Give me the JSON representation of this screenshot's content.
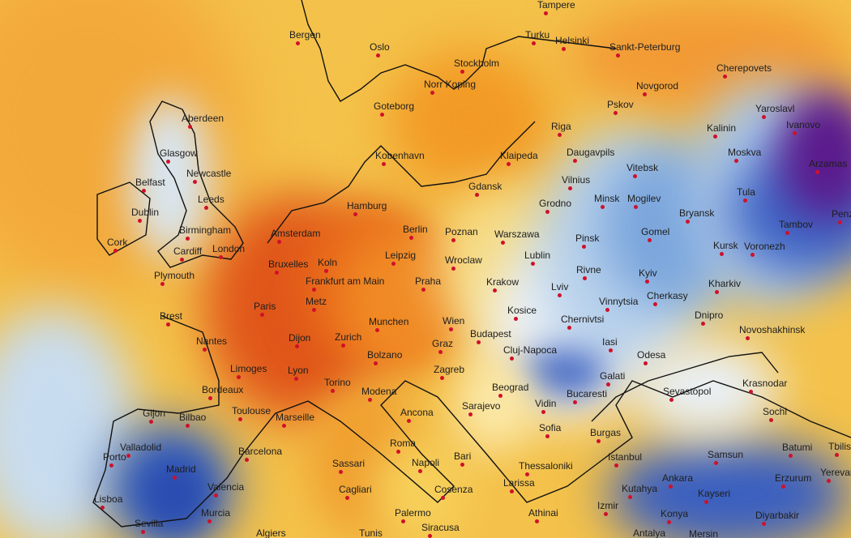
{
  "map": {
    "type": "weather-anomaly-map",
    "palette": {
      "warm_strong": "#e0561a",
      "warm": "#f29a25",
      "neutral_warm": "#f6cf5a",
      "neutral_cool": "#eaf1f7",
      "cool": "#8fb5e0",
      "cold": "#2f56b8",
      "very_cold": "#5b1a8c",
      "city_dot": "#d0102a"
    },
    "cities": [
      "Tampere",
      "Bergen",
      "Turku",
      "Helsinki",
      "Sankt-Peterburg",
      "Oslo",
      "Stockholm",
      "Cherepovets",
      "Norr Koping",
      "Novgorod",
      "Goteborg",
      "Pskov",
      "Yaroslavl",
      "Aberdeen",
      "Riga",
      "Ivanovo",
      "Kalinin",
      "Glasgow",
      "Kobenhavn",
      "Klaipeda",
      "Daugavpils",
      "Moskva",
      "Newcastle",
      "Vitebsk",
      "Arzamas",
      "Belfast",
      "Vilnius",
      "Gdansk",
      "Leeds",
      "Minsk",
      "Mogilev",
      "Tula",
      "Dublin",
      "Hamburg",
      "Grodno",
      "Bryansk",
      "Penza",
      "Berlin",
      "Poznan",
      "Warszawa",
      "Amsterdam",
      "Birmingham",
      "Tambov",
      "Pinsk",
      "Gomel",
      "Kursk",
      "Voronezh",
      "Cork",
      "Cardiff",
      "London",
      "Leipzig",
      "Lublin",
      "Bruxelles",
      "Koln",
      "Wroclaw",
      "Rivne",
      "Kyiv",
      "Plymouth",
      "Frankfurt am Main",
      "Praha",
      "Krakow",
      "Lviv",
      "Kharkiv",
      "Paris",
      "Metz",
      "Vinnytsia",
      "Cherkasy",
      "Brest",
      "Kosice",
      "Chernivtsi",
      "Dnipro",
      "Munchen",
      "Wien",
      "Nantes",
      "Dijon",
      "Zurich",
      "Budapest",
      "Novoshakhinsk",
      "Bolzano",
      "Graz",
      "Cluj-Napoca",
      "Iasi",
      "Odesa",
      "Limoges",
      "Lyon",
      "Zagreb",
      "Galati",
      "Krasnodar",
      "Torino",
      "Bordeaux",
      "Beograd",
      "Bucaresti",
      "Sevastopol",
      "Modena",
      "Vidin",
      "Toulouse",
      "Gijon",
      "Bilbao",
      "Marseille",
      "Ancona",
      "Sarajevo",
      "Sochi",
      "Sofia",
      "Burgas",
      "Valladolid",
      "Barcelona",
      "Roma",
      "Batumi",
      "Tbilisi",
      "Samsun",
      "Istanbul",
      "Porto",
      "Napoli",
      "Bari",
      "Thessaloniki",
      "Madrid",
      "Sassari",
      "Valencia",
      "Ankara",
      "Kutahya",
      "Kayseri",
      "Erzurum",
      "Yerevan",
      "Cagliari",
      "Cosenza",
      "Larissa",
      "Lisboa",
      "Murcia",
      "Izmir",
      "Konya",
      "Diyarbakir",
      "Palermo",
      "Athinai",
      "Sevilla",
      "Siracusa",
      "Algiers",
      "Tunis",
      "Antalya",
      "Mersin"
    ]
  }
}
